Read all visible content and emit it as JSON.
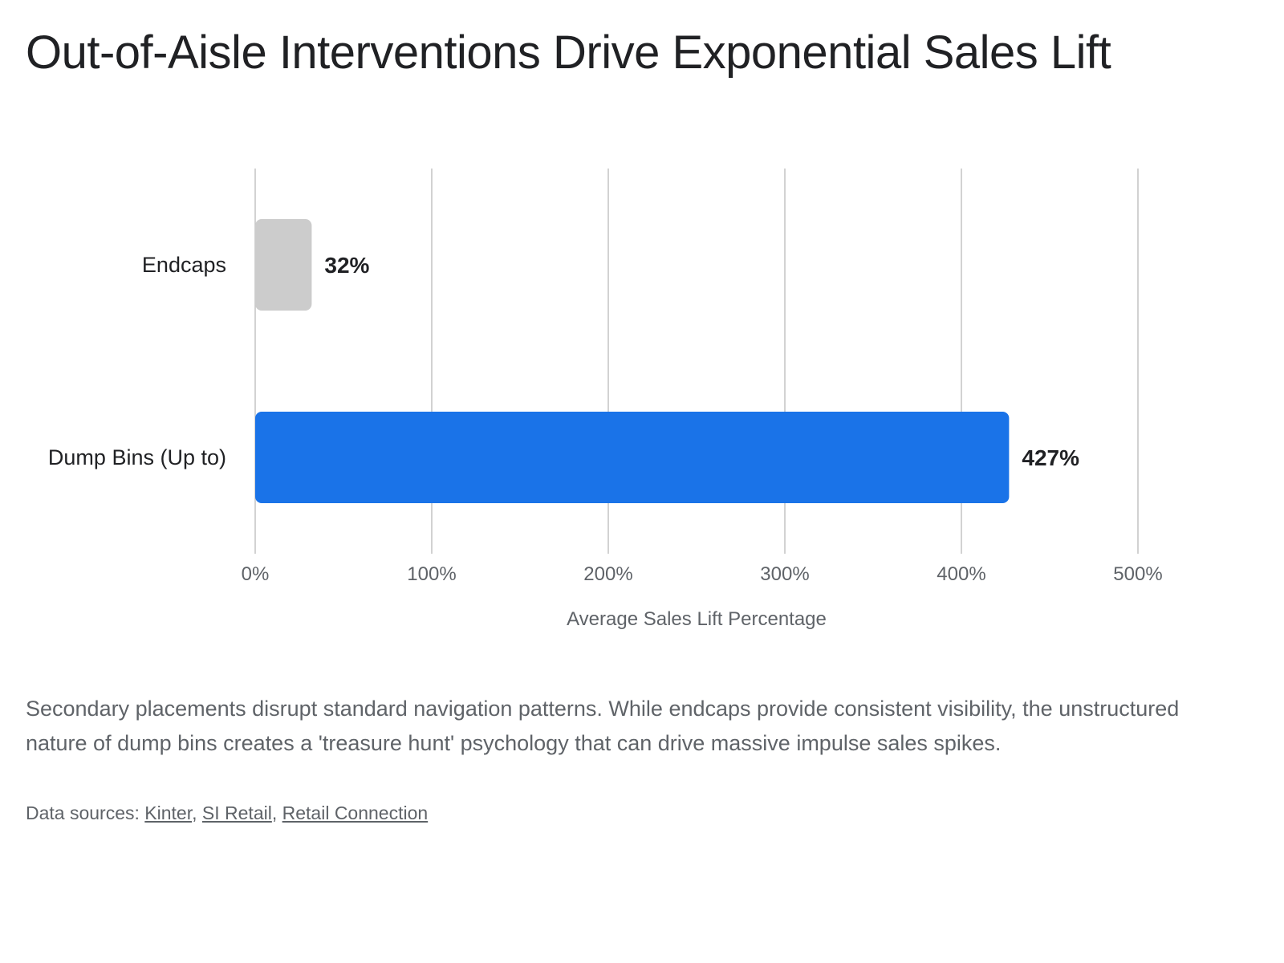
{
  "header": {
    "title": "Out-of-Aisle Interventions Drive Exponential Sales Lift"
  },
  "chart_data": {
    "type": "bar",
    "orientation": "horizontal",
    "title": "",
    "xlabel": "Average Sales Lift Percentage",
    "ylabel": "",
    "categories": [
      "Endcaps",
      "Dump Bins (Up to)"
    ],
    "values": [
      32,
      427
    ],
    "value_labels": [
      "32%",
      "427%"
    ],
    "bar_colors": [
      "#cccccc",
      "#1a73e8"
    ],
    "xlim": [
      0,
      500
    ],
    "x_ticks": [
      0,
      100,
      200,
      300,
      400,
      500
    ],
    "x_tick_labels": [
      "0%",
      "100%",
      "200%",
      "300%",
      "400%",
      "500%"
    ],
    "grid": true,
    "legend": "none"
  },
  "footer": {
    "description": "Secondary placements disrupt standard navigation patterns. While endcaps provide consistent visibility, the unstructured nature of dump bins creates a 'treasure hunt' psychology that can drive massive impulse sales spikes.",
    "sources_label": "Data sources: ",
    "sources": [
      "Kinter",
      "SI Retail",
      "Retail Connection"
    ],
    "separator": ", "
  }
}
